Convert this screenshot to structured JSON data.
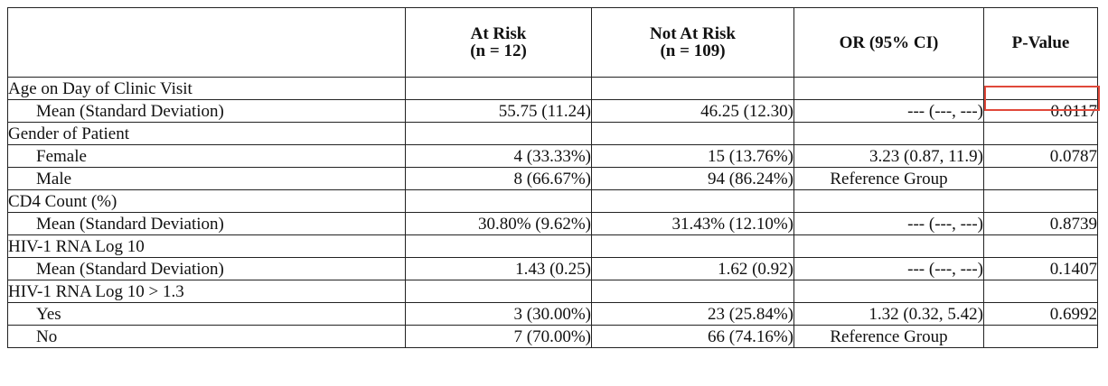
{
  "table": {
    "headers": {
      "at_risk": [
        "At Risk",
        "(n = 12)"
      ],
      "not_at_risk": [
        "Not At Risk",
        "(n = 109)"
      ],
      "or_ci": "OR (95% CI)",
      "p_value": "P-Value"
    },
    "sections": [
      {
        "title": "Age on Day of Clinic Visit",
        "rows": [
          {
            "label": "Mean (Standard Deviation)",
            "at_risk": "55.75 (11.24)",
            "not_at_risk": "46.25 (12.30)",
            "or": "--- (---, ---)",
            "p": "0.0117"
          }
        ]
      },
      {
        "title": "Gender of Patient",
        "rows": [
          {
            "label": "Female",
            "at_risk": "4 (33.33%)",
            "not_at_risk": "15 (13.76%)",
            "or": "3.23 (0.87, 11.9)",
            "p": "0.0787"
          },
          {
            "label": "Male",
            "at_risk": "8 (66.67%)",
            "not_at_risk": "94 (86.24%)",
            "or": "Reference Group",
            "p": ""
          }
        ]
      },
      {
        "title": "CD4 Count (%)",
        "rows": [
          {
            "label": "Mean (Standard Deviation)",
            "at_risk": "30.80% (9.62%)",
            "not_at_risk": "31.43% (12.10%)",
            "or": "--- (---, ---)",
            "p": "0.8739"
          }
        ]
      },
      {
        "title": "HIV-1 RNA Log 10",
        "rows": [
          {
            "label": "Mean (Standard Deviation)",
            "at_risk": "1.43 (0.25)",
            "not_at_risk": "1.62 (0.92)",
            "or": "--- (---, ---)",
            "p": "0.1407"
          }
        ]
      },
      {
        "title": "HIV-1 RNA Log 10 > 1.3",
        "rows": [
          {
            "label": "Yes",
            "at_risk": "3 (30.00%)",
            "not_at_risk": "23 (25.84%)",
            "or": "1.32 (0.32, 5.42)",
            "p": "0.6992"
          },
          {
            "label": "No",
            "at_risk": "7 (70.00%)",
            "not_at_risk": "66 (74.16%)",
            "or": "Reference Group",
            "p": ""
          }
        ]
      }
    ]
  },
  "highlight": {
    "color": "#e0483a"
  }
}
